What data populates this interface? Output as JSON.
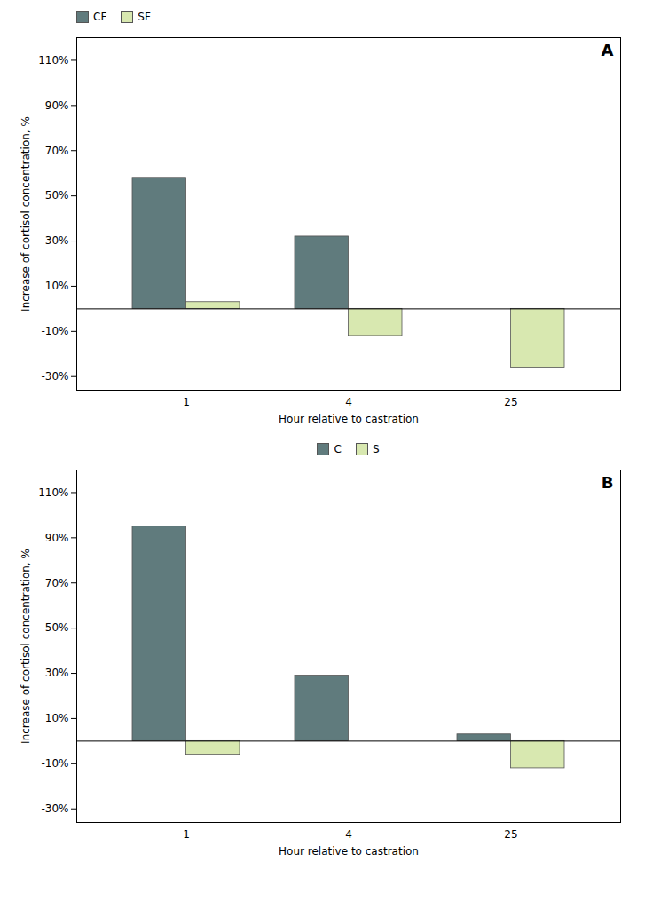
{
  "chart_data": [
    {
      "type": "bar",
      "title": "A",
      "categories": [
        "1",
        "4",
        "25"
      ],
      "series": [
        {
          "name": "CF",
          "color": "#607B7D",
          "values": [
            58,
            32,
            0
          ]
        },
        {
          "name": "SF",
          "color": "#D8E8B0",
          "values": [
            3,
            -12,
            -26
          ]
        }
      ],
      "xlabel": "Hour relative to castration",
      "ylabel": "Increase of cortisol concentration, %",
      "ylim": [
        -36,
        120
      ],
      "yticks": [
        {
          "value": -30,
          "label": "-30%"
        },
        {
          "value": -10,
          "label": "-10%"
        },
        {
          "value": 10,
          "label": "10%"
        },
        {
          "value": 30,
          "label": "30%"
        },
        {
          "value": 50,
          "label": "50%"
        },
        {
          "value": 70,
          "label": "70%"
        },
        {
          "value": 90,
          "label": "90%"
        },
        {
          "value": 110,
          "label": "110%"
        }
      ],
      "legend": "upper left",
      "grid": false
    },
    {
      "type": "bar",
      "title": "B",
      "categories": [
        "1",
        "4",
        "25"
      ],
      "series": [
        {
          "name": "C",
          "color": "#607B7D",
          "values": [
            95,
            29,
            3
          ]
        },
        {
          "name": "S",
          "color": "#D8E8B0",
          "values": [
            -6,
            0,
            -12
          ]
        }
      ],
      "xlabel": "Hour relative to castration",
      "ylabel": "Increase of cortisol concentration, %",
      "ylim": [
        -36,
        120
      ],
      "yticks": [
        {
          "value": -30,
          "label": "-30%"
        },
        {
          "value": -10,
          "label": "-10%"
        },
        {
          "value": 10,
          "label": "10%"
        },
        {
          "value": 30,
          "label": "30%"
        },
        {
          "value": 50,
          "label": "50%"
        },
        {
          "value": 70,
          "label": "70%"
        },
        {
          "value": 90,
          "label": "90%"
        },
        {
          "value": 110,
          "label": "110%"
        }
      ],
      "legend": "upper center",
      "grid": false
    }
  ]
}
